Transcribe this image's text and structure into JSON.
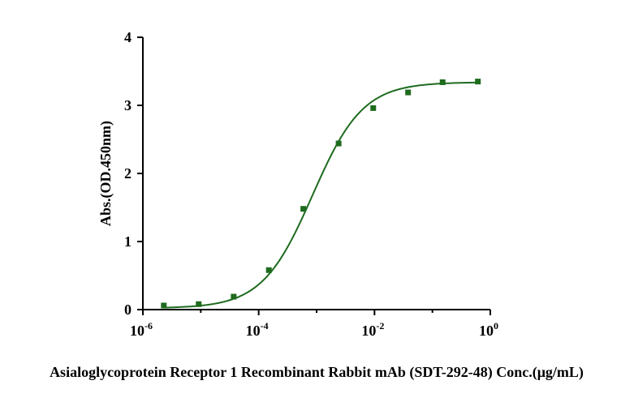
{
  "chart_data": {
    "type": "scatter",
    "title": "",
    "xlabel": "Asialoglycoprotein Receptor 1 Recombinant Rabbit mAb (SDT-292-48) Conc.(μg/mL)",
    "ylabel": "Abs.(OD.450nm)",
    "x_scale": "log",
    "xlim": [
      1e-06,
      1
    ],
    "ylim": [
      0,
      4
    ],
    "x_ticks": [
      {
        "base": "10",
        "exp": "-6",
        "value": 1e-06
      },
      {
        "base": "10",
        "exp": "-4",
        "value": 0.0001
      },
      {
        "base": "10",
        "exp": "-2",
        "value": 0.01
      },
      {
        "base": "10",
        "exp": "0",
        "value": 1
      }
    ],
    "y_ticks": [
      "0",
      "1",
      "2",
      "3",
      "4"
    ],
    "grid": false,
    "legend": "none",
    "color": "#1e6b1e",
    "series": [
      {
        "points": [
          {
            "x": 2.3e-06,
            "y": 0.06
          },
          {
            "x": 9.2e-06,
            "y": 0.08
          },
          {
            "x": 3.7e-05,
            "y": 0.19
          },
          {
            "x": 0.00015,
            "y": 0.58
          },
          {
            "x": 0.00059,
            "y": 1.48
          },
          {
            "x": 0.0024,
            "y": 2.44
          },
          {
            "x": 0.0095,
            "y": 2.96
          },
          {
            "x": 0.038,
            "y": 3.19
          },
          {
            "x": 0.15,
            "y": 3.34
          },
          {
            "x": 0.61,
            "y": 3.35
          }
        ]
      }
    ],
    "fit": {
      "bottom": 0.02,
      "top": 3.34,
      "ec50": 0.00085,
      "hill": 1.0
    }
  }
}
